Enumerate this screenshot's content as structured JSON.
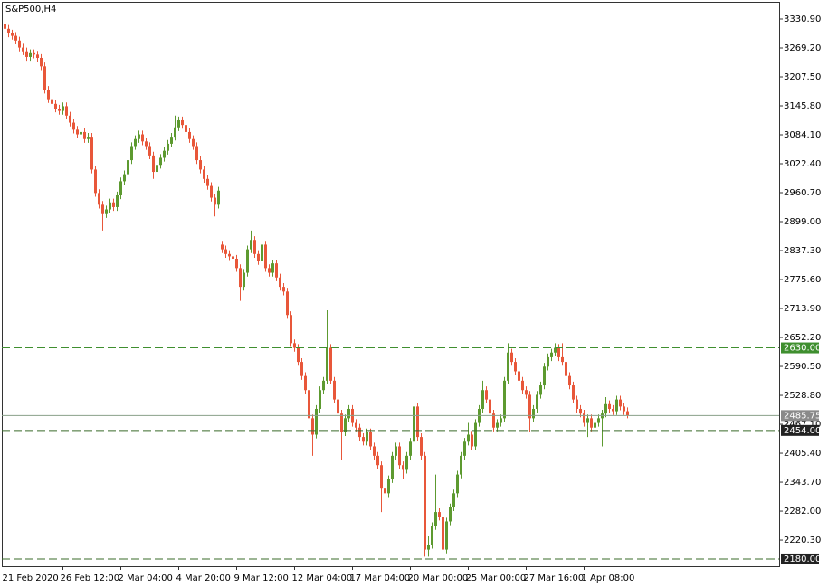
{
  "chart_data": {
    "type": "candlestick",
    "title": "S&P500,H4",
    "up_color": "#5d9a30",
    "down_color": "#e8573a",
    "ylim": [
      2164.5,
      3367.5
    ],
    "yticks": [
      {
        "value": 3330.9,
        "label": "3330.90"
      },
      {
        "value": 3269.2,
        "label": "3269.20"
      },
      {
        "value": 3207.5,
        "label": "3207.50"
      },
      {
        "value": 3145.8,
        "label": "3145.80"
      },
      {
        "value": 3084.1,
        "label": "3084.10"
      },
      {
        "value": 3022.4,
        "label": "3022.40"
      },
      {
        "value": 2960.7,
        "label": "2960.70"
      },
      {
        "value": 2899,
        "label": "2899.00"
      },
      {
        "value": 2837.3,
        "label": "2837.30"
      },
      {
        "value": 2775.6,
        "label": "2775.60"
      },
      {
        "value": 2713.9,
        "label": "2713.90"
      },
      {
        "value": 2652.2,
        "label": "2652.20"
      },
      {
        "value": 2590.5,
        "label": "2590.50"
      },
      {
        "value": 2528.8,
        "label": "2528.80"
      },
      {
        "value": 2467.1,
        "label": "2467.10"
      },
      {
        "value": 2405.4,
        "label": "2405.40"
      },
      {
        "value": 2343.7,
        "label": "2343.70"
      },
      {
        "value": 2282,
        "label": "2282.00"
      },
      {
        "value": 2220.3,
        "label": "2220.30"
      }
    ],
    "levels": [
      {
        "value": 2630,
        "label": "2630.00",
        "style": "dashed",
        "color": "#3f8f2f",
        "label_bg": "#3f8f2f"
      },
      {
        "value": 2454,
        "label": "2454.00",
        "style": "dashed",
        "color": "#3a6b2a",
        "label_bg": "#222222"
      },
      {
        "value": 2180,
        "label": "2180.00",
        "style": "dashed",
        "color": "#3a6b2a",
        "label_bg": "#222222"
      },
      {
        "value": 2485.75,
        "label": "2485.75",
        "style": "solid",
        "color": "#8aa08a",
        "label_bg": "#8a8a8a"
      }
    ],
    "categories": [
      "21 Feb 2020",
      null,
      null,
      null,
      null,
      null,
      null,
      null,
      null,
      null,
      null,
      null,
      null,
      null,
      null,
      null,
      "26 Feb 12:00",
      null,
      null,
      null,
      null,
      null,
      null,
      null,
      null,
      null,
      null,
      null,
      null,
      null,
      null,
      null,
      "2 Mar 04:00",
      null,
      null,
      null,
      null,
      null,
      null,
      null,
      null,
      null,
      null,
      null,
      null,
      null,
      null,
      null,
      "4 Mar 20:00",
      null,
      null,
      null,
      null,
      null,
      null,
      null,
      null,
      null,
      null,
      null,
      null,
      null,
      null,
      null,
      "9 Mar 12:00",
      null,
      null,
      null,
      null,
      null,
      null,
      null,
      null,
      null,
      null,
      null,
      null,
      null,
      null,
      null,
      "12 Mar 04:00",
      null,
      null,
      null,
      null,
      null,
      null,
      null,
      null,
      null,
      null,
      null,
      null,
      null,
      null,
      null,
      "17 Mar 04:00",
      null,
      null,
      null,
      null,
      null,
      null,
      null,
      null,
      null,
      null,
      null,
      null,
      null,
      null,
      null,
      "20 Mar 00:00",
      null,
      null,
      null,
      null,
      null,
      null,
      null,
      null,
      null,
      null,
      null,
      null,
      null,
      null,
      null,
      "25 Mar 00:00",
      null,
      null,
      null,
      null,
      null,
      null,
      null,
      null,
      null,
      null,
      null,
      null,
      null,
      null,
      null,
      "27 Mar 16:00",
      null,
      null,
      null,
      null,
      null,
      null,
      null,
      null,
      null,
      null,
      null,
      null,
      null,
      null,
      null,
      "1 Apr 08:00",
      null,
      null,
      null,
      null,
      null,
      null,
      null,
      null,
      null,
      null,
      null,
      null
    ],
    "candles": [
      [
        3320,
        3330,
        3300,
        3310
      ],
      [
        3310,
        3318,
        3292,
        3300
      ],
      [
        3300,
        3308,
        3287,
        3295
      ],
      [
        3295,
        3303,
        3277,
        3285
      ],
      [
        3285,
        3293,
        3262,
        3270
      ],
      [
        3270,
        3278,
        3254,
        3262
      ],
      [
        3262,
        3270,
        3242,
        3250
      ],
      [
        3250,
        3266,
        3242,
        3258
      ],
      [
        3258,
        3266,
        3247,
        3255
      ],
      [
        3255,
        3263,
        3240,
        3248
      ],
      [
        3248,
        3256,
        3222,
        3230
      ],
      [
        3230,
        3238,
        3172,
        3180
      ],
      [
        3180,
        3188,
        3152,
        3160
      ],
      [
        3160,
        3168,
        3142,
        3150
      ],
      [
        3150,
        3158,
        3132,
        3140
      ],
      [
        3140,
        3148,
        3127,
        3135
      ],
      [
        3135,
        3153,
        3127,
        3145
      ],
      [
        3145,
        3153,
        3117,
        3125
      ],
      [
        3125,
        3133,
        3102,
        3110
      ],
      [
        3110,
        3118,
        3087,
        3095
      ],
      [
        3095,
        3103,
        3077,
        3085
      ],
      [
        3085,
        3098,
        3077,
        3090
      ],
      [
        3090,
        3098,
        3067,
        3075
      ],
      [
        3075,
        3088,
        3067,
        3080
      ],
      [
        3080,
        3088,
        3002,
        3010
      ],
      [
        3010,
        3018,
        2952,
        2960
      ],
      [
        2960,
        2968,
        2927,
        2935
      ],
      [
        2935,
        2943,
        2880,
        2915
      ],
      [
        2915,
        2933,
        2907,
        2925
      ],
      [
        2925,
        2948,
        2917,
        2940
      ],
      [
        2940,
        2948,
        2922,
        2930
      ],
      [
        2930,
        2963,
        2922,
        2955
      ],
      [
        2955,
        2993,
        2947,
        2985
      ],
      [
        2985,
        3008,
        2977,
        3000
      ],
      [
        3000,
        3038,
        2992,
        3030
      ],
      [
        3030,
        3068,
        3022,
        3060
      ],
      [
        3060,
        3083,
        3052,
        3075
      ],
      [
        3075,
        3093,
        3067,
        3085
      ],
      [
        3085,
        3093,
        3062,
        3070
      ],
      [
        3070,
        3078,
        3052,
        3060
      ],
      [
        3060,
        3068,
        3032,
        3040
      ],
      [
        3040,
        3048,
        2990,
        3005
      ],
      [
        3005,
        3028,
        2997,
        3020
      ],
      [
        3020,
        3043,
        3012,
        3035
      ],
      [
        3035,
        3058,
        3027,
        3050
      ],
      [
        3050,
        3073,
        3042,
        3065
      ],
      [
        3065,
        3088,
        3057,
        3080
      ],
      [
        3080,
        3125,
        3072,
        3100
      ],
      [
        3100,
        3123,
        3092,
        3115
      ],
      [
        3115,
        3123,
        3097,
        3105
      ],
      [
        3105,
        3113,
        3082,
        3090
      ],
      [
        3090,
        3098,
        3067,
        3075
      ],
      [
        3075,
        3083,
        3052,
        3060
      ],
      [
        3060,
        3068,
        3022,
        3030
      ],
      [
        3030,
        3038,
        3002,
        3010
      ],
      [
        3010,
        3018,
        2982,
        2990
      ],
      [
        2990,
        2998,
        2967,
        2975
      ],
      [
        2975,
        2983,
        2942,
        2950
      ],
      [
        2950,
        2958,
        2910,
        2935
      ],
      [
        2935,
        2973,
        2927,
        2965
      ],
      [
        2850,
        2858,
        2832,
        2840
      ],
      [
        2840,
        2848,
        2822,
        2830
      ],
      [
        2830,
        2838,
        2817,
        2825
      ],
      [
        2825,
        2833,
        2812,
        2820
      ],
      [
        2820,
        2828,
        2792,
        2800
      ],
      [
        2800,
        2808,
        2730,
        2760
      ],
      [
        2760,
        2798,
        2752,
        2790
      ],
      [
        2790,
        2848,
        2782,
        2840
      ],
      [
        2840,
        2880,
        2832,
        2860
      ],
      [
        2860,
        2868,
        2822,
        2830
      ],
      [
        2830,
        2838,
        2807,
        2815
      ],
      [
        2815,
        2885,
        2807,
        2850
      ],
      [
        2850,
        2858,
        2792,
        2800
      ],
      [
        2800,
        2808,
        2782,
        2790
      ],
      [
        2790,
        2818,
        2782,
        2810
      ],
      [
        2810,
        2818,
        2772,
        2780
      ],
      [
        2780,
        2788,
        2752,
        2760
      ],
      [
        2760,
        2768,
        2742,
        2750
      ],
      [
        2750,
        2758,
        2692,
        2700
      ],
      [
        2700,
        2708,
        2632,
        2640
      ],
      [
        2640,
        2648,
        2622,
        2630
      ],
      [
        2630,
        2638,
        2592,
        2600
      ],
      [
        2600,
        2608,
        2562,
        2570
      ],
      [
        2570,
        2578,
        2532,
        2540
      ],
      [
        2540,
        2548,
        2472,
        2480
      ],
      [
        2480,
        2488,
        2400,
        2445
      ],
      [
        2445,
        2508,
        2437,
        2500
      ],
      [
        2500,
        2548,
        2492,
        2540
      ],
      [
        2540,
        2568,
        2532,
        2560
      ],
      [
        2560,
        2710,
        2552,
        2630
      ],
      [
        2630,
        2638,
        2552,
        2560
      ],
      [
        2560,
        2568,
        2512,
        2520
      ],
      [
        2520,
        2528,
        2482,
        2490
      ],
      [
        2490,
        2498,
        2390,
        2450
      ],
      [
        2450,
        2488,
        2442,
        2480
      ],
      [
        2480,
        2508,
        2472,
        2500
      ],
      [
        2500,
        2508,
        2462,
        2470
      ],
      [
        2470,
        2478,
        2452,
        2460
      ],
      [
        2460,
        2468,
        2432,
        2440
      ],
      [
        2440,
        2448,
        2422,
        2430
      ],
      [
        2430,
        2458,
        2422,
        2450
      ],
      [
        2450,
        2458,
        2412,
        2420
      ],
      [
        2420,
        2428,
        2392,
        2400
      ],
      [
        2400,
        2408,
        2372,
        2380
      ],
      [
        2380,
        2388,
        2280,
        2330
      ],
      [
        2330,
        2338,
        2300,
        2320
      ],
      [
        2320,
        2358,
        2312,
        2350
      ],
      [
        2350,
        2408,
        2342,
        2400
      ],
      [
        2400,
        2428,
        2392,
        2420
      ],
      [
        2420,
        2428,
        2372,
        2380
      ],
      [
        2380,
        2388,
        2350,
        2370
      ],
      [
        2370,
        2408,
        2362,
        2400
      ],
      [
        2400,
        2438,
        2392,
        2430
      ],
      [
        2430,
        2513,
        2422,
        2505
      ],
      [
        2505,
        2513,
        2432,
        2440
      ],
      [
        2440,
        2448,
        2392,
        2400
      ],
      [
        2400,
        2408,
        2185,
        2200
      ],
      [
        2200,
        2228,
        2185,
        2210
      ],
      [
        2210,
        2258,
        2202,
        2250
      ],
      [
        2250,
        2360,
        2242,
        2280
      ],
      [
        2280,
        2288,
        2262,
        2270
      ],
      [
        2270,
        2278,
        2190,
        2200
      ],
      [
        2200,
        2268,
        2192,
        2260
      ],
      [
        2260,
        2298,
        2252,
        2290
      ],
      [
        2290,
        2328,
        2282,
        2320
      ],
      [
        2320,
        2368,
        2312,
        2360
      ],
      [
        2360,
        2408,
        2352,
        2400
      ],
      [
        2400,
        2438,
        2392,
        2430
      ],
      [
        2430,
        2470,
        2422,
        2445
      ],
      [
        2445,
        2453,
        2412,
        2420
      ],
      [
        2420,
        2478,
        2412,
        2470
      ],
      [
        2470,
        2508,
        2462,
        2500
      ],
      [
        2500,
        2560,
        2492,
        2540
      ],
      [
        2540,
        2548,
        2512,
        2520
      ],
      [
        2520,
        2528,
        2482,
        2490
      ],
      [
        2490,
        2498,
        2452,
        2460
      ],
      [
        2460,
        2478,
        2452,
        2470
      ],
      [
        2470,
        2488,
        2462,
        2480
      ],
      [
        2480,
        2568,
        2472,
        2560
      ],
      [
        2560,
        2640,
        2552,
        2620
      ],
      [
        2620,
        2628,
        2592,
        2600
      ],
      [
        2600,
        2608,
        2572,
        2580
      ],
      [
        2580,
        2588,
        2552,
        2560
      ],
      [
        2560,
        2568,
        2532,
        2540
      ],
      [
        2540,
        2548,
        2522,
        2530
      ],
      [
        2530,
        2538,
        2450,
        2480
      ],
      [
        2480,
        2508,
        2472,
        2500
      ],
      [
        2500,
        2538,
        2492,
        2530
      ],
      [
        2530,
        2558,
        2522,
        2550
      ],
      [
        2550,
        2598,
        2542,
        2590
      ],
      [
        2590,
        2618,
        2582,
        2610
      ],
      [
        2610,
        2628,
        2602,
        2620
      ],
      [
        2620,
        2640,
        2612,
        2630
      ],
      [
        2630,
        2638,
        2602,
        2610
      ],
      [
        2610,
        2640,
        2592,
        2600
      ],
      [
        2600,
        2608,
        2562,
        2570
      ],
      [
        2570,
        2578,
        2542,
        2550
      ],
      [
        2550,
        2558,
        2512,
        2520
      ],
      [
        2520,
        2528,
        2492,
        2500
      ],
      [
        2500,
        2508,
        2482,
        2490
      ],
      [
        2490,
        2498,
        2462,
        2470
      ],
      [
        2470,
        2488,
        2440,
        2480
      ],
      [
        2480,
        2488,
        2452,
        2460
      ],
      [
        2460,
        2478,
        2452,
        2470
      ],
      [
        2470,
        2488,
        2462,
        2480
      ],
      [
        2480,
        2498,
        2420,
        2490
      ],
      [
        2490,
        2525,
        2482,
        2510
      ],
      [
        2510,
        2518,
        2492,
        2500
      ],
      [
        2500,
        2508,
        2487,
        2495
      ],
      [
        2495,
        2528,
        2487,
        2520
      ],
      [
        2520,
        2528,
        2497,
        2505
      ],
      [
        2505,
        2513,
        2487,
        2495
      ],
      [
        2495,
        2503,
        2480,
        2485.75
      ]
    ]
  }
}
